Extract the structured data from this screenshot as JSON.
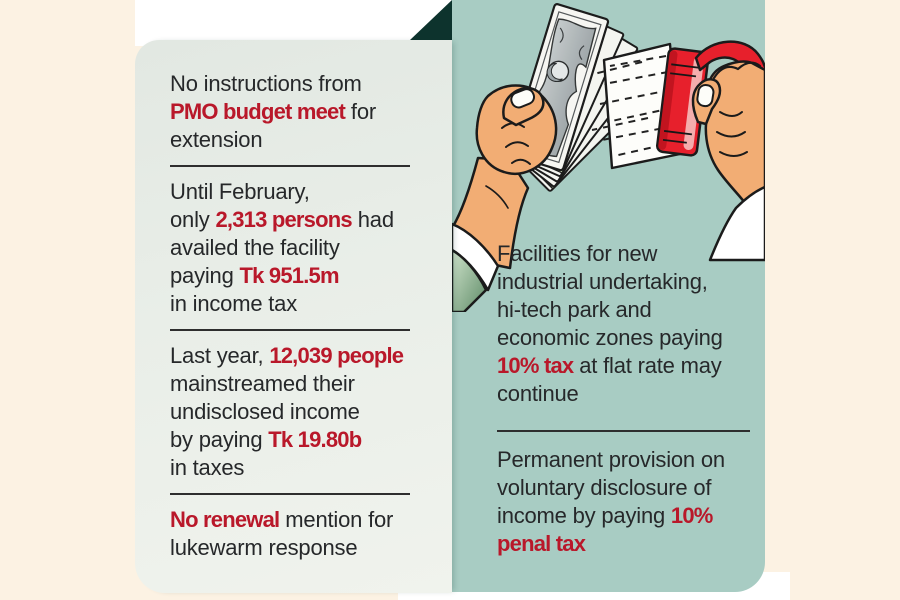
{
  "page": {
    "background_color": "#fcf2e3",
    "left_panel_color": "#e9eee8",
    "right_panel_color": "#a8ccc3",
    "fold_corner_color": "#0d332d",
    "accent_red": "#b9182a",
    "text_color": "#26282a"
  },
  "left_panel": {
    "blocks": [
      {
        "lines": [
          [
            {
              "t": "No instructions from"
            }
          ],
          [
            {
              "t": "PMO budget meet",
              "em": true
            },
            {
              "t": " for"
            }
          ],
          [
            {
              "t": "extension"
            }
          ]
        ]
      },
      {
        "lines": [
          [
            {
              "t": "Until February,"
            }
          ],
          [
            {
              "t": "only "
            },
            {
              "t": "2,313 persons",
              "em": true
            },
            {
              "t": " had"
            }
          ],
          [
            {
              "t": "availed the facility"
            }
          ],
          [
            {
              "t": "paying "
            },
            {
              "t": "Tk 951.5m",
              "em": true
            }
          ],
          [
            {
              "t": "in income tax"
            }
          ]
        ]
      },
      {
        "lines": [
          [
            {
              "t": "Last year, "
            },
            {
              "t": "12,039 people",
              "em": true
            }
          ],
          [
            {
              "t": "mainstreamed their"
            }
          ],
          [
            {
              "t": "undisclosed income"
            }
          ],
          [
            {
              "t": "by paying "
            },
            {
              "t": "Tk 19.80b",
              "em": true
            }
          ],
          [
            {
              "t": "in taxes"
            }
          ]
        ]
      },
      {
        "lines": [
          [
            {
              "t": "No renewal",
              "em": true
            },
            {
              "t": " mention for"
            }
          ],
          [
            {
              "t": "lukewarm response"
            }
          ]
        ]
      }
    ]
  },
  "right_panel": {
    "illustration_name": "hand-whitening-money-with-brush",
    "blocks": [
      {
        "lines": [
          [
            {
              "t": "Facilities for new"
            }
          ],
          [
            {
              "t": "industrial undertaking,"
            }
          ],
          [
            {
              "t": "hi-tech park and"
            }
          ],
          [
            {
              "t": "economic zones paying"
            }
          ],
          [
            {
              "t": "10% tax",
              "em": true
            },
            {
              "t": " at flat rate may"
            }
          ],
          [
            {
              "t": "continue"
            }
          ]
        ]
      },
      {
        "lines": [
          [
            {
              "t": "Permanent provision on"
            }
          ],
          [
            {
              "t": "voluntary disclosure of"
            }
          ],
          [
            {
              "t": "income by paying "
            },
            {
              "t": "10%",
              "em": true
            }
          ],
          [
            {
              "t": "penal tax",
              "em": true
            }
          ]
        ]
      }
    ]
  }
}
